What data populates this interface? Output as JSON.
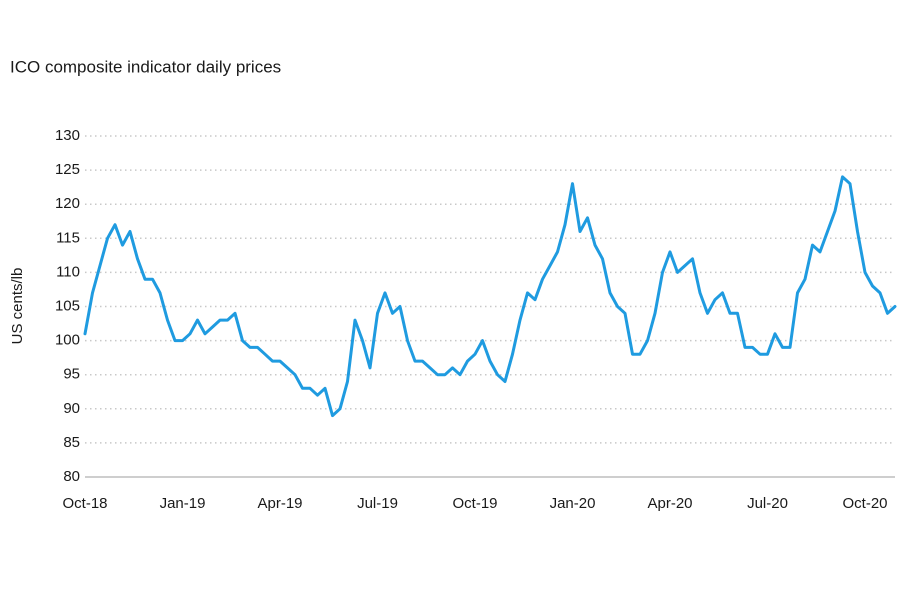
{
  "chart_data": {
    "type": "line",
    "title": "ICO composite indicator daily prices",
    "y_label": "US cents/lb",
    "categories": [
      "Oct-18",
      null,
      null,
      null,
      null,
      null,
      null,
      null,
      null,
      null,
      null,
      null,
      null,
      "Jan-19",
      null,
      null,
      null,
      null,
      null,
      null,
      null,
      null,
      null,
      null,
      null,
      null,
      "Apr-19",
      null,
      null,
      null,
      null,
      null,
      null,
      null,
      null,
      null,
      null,
      null,
      null,
      "Jul-19",
      null,
      null,
      null,
      null,
      null,
      null,
      null,
      null,
      null,
      null,
      null,
      null,
      "Oct-19",
      null,
      null,
      null,
      null,
      null,
      null,
      null,
      null,
      null,
      null,
      null,
      null,
      "Jan-20",
      null,
      null,
      null,
      null,
      null,
      null,
      null,
      null,
      null,
      null,
      null,
      null,
      "Apr-20",
      null,
      null,
      null,
      null,
      null,
      null,
      null,
      null,
      null,
      null,
      null,
      null,
      "Jul-20",
      null,
      null,
      null,
      null,
      null,
      null,
      null,
      null,
      null,
      null,
      null,
      null,
      "Oct-20",
      null,
      null,
      null,
      null
    ],
    "values": [
      101,
      107,
      111,
      115,
      117,
      114,
      116,
      112,
      109,
      109,
      107,
      103,
      100,
      100,
      101,
      103,
      101,
      102,
      103,
      103,
      104,
      100,
      99,
      99,
      98,
      97,
      97,
      96,
      95,
      93,
      93,
      92,
      93,
      89,
      90,
      94,
      103,
      100,
      96,
      104,
      107,
      104,
      105,
      100,
      97,
      97,
      96,
      95,
      95,
      96,
      95,
      97,
      98,
      100,
      97,
      95,
      94,
      98,
      103,
      107,
      106,
      109,
      111,
      113,
      117,
      123,
      116,
      118,
      114,
      112,
      107,
      105,
      104,
      98,
      98,
      100,
      104,
      110,
      113,
      110,
      111,
      112,
      107,
      104,
      106,
      107,
      104,
      104,
      99,
      99,
      98,
      98,
      101,
      99,
      99,
      107,
      109,
      114,
      113,
      116,
      119,
      124,
      123,
      116,
      110,
      108,
      107,
      104,
      105
    ],
    "color": "#1f9be0",
    "ylim": [
      80,
      130
    ],
    "yticks": [
      80,
      85,
      90,
      95,
      100,
      105,
      110,
      115,
      120,
      125,
      130
    ],
    "grid": true
  }
}
